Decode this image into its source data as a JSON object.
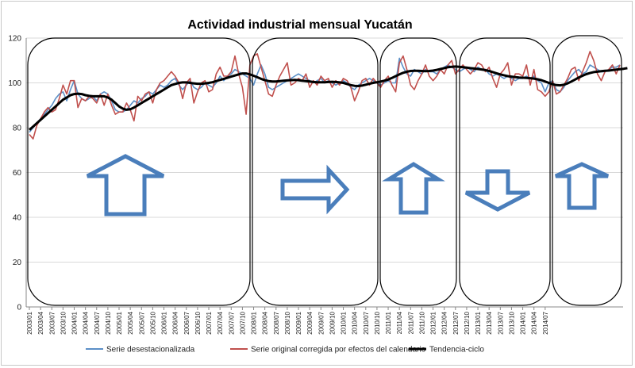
{
  "chart_data": {
    "type": "line",
    "title": "Actividad industrial mensual Yucatán",
    "ylim": [
      0,
      120
    ],
    "yticks": [
      "0",
      "20",
      "40",
      "60",
      "80",
      "100",
      "120"
    ],
    "grid": true,
    "legend_position": "bottom",
    "x_tick_labels": [
      "2003/01",
      "2003/04",
      "2003/07",
      "2003/10",
      "2004/01",
      "2004/04",
      "2004/07",
      "2004/10",
      "2005/01",
      "2005/04",
      "2005/07",
      "2005/10",
      "2006/01",
      "2006/04",
      "2006/07",
      "2006/10",
      "2007/01",
      "2007/04",
      "2007/07",
      "2007/10",
      "2008/01",
      "2008/04",
      "2008/07",
      "2008/10",
      "2009/01",
      "2009/04",
      "2009/07",
      "2009/10",
      "2010/01",
      "2010/04",
      "2010/07",
      "2010/10",
      "2011/01",
      "2011/04",
      "2011/07",
      "2011/10",
      "2012/01",
      "2012/04",
      "2012/07",
      "2012/10",
      "2013/01",
      "2013/04",
      "2013/07",
      "2013/10",
      "2014/01",
      "2014/04",
      "2014/07"
    ],
    "series": [
      {
        "name": "Serie desestacionalizada",
        "color": "#5b8fc7",
        "values": [
          78,
          80,
          82,
          84,
          86,
          88,
          90,
          93,
          95,
          96,
          92,
          97,
          101,
          95,
          93,
          92,
          93,
          94,
          92,
          95,
          96,
          95,
          92,
          88,
          87,
          87,
          88,
          90,
          92,
          91,
          93,
          94,
          96,
          95,
          97,
          99,
          98,
          99,
          101,
          102,
          99,
          97,
          99,
          101,
          98,
          97,
          98,
          100,
          99,
          98,
          100,
          103,
          101,
          103,
          104,
          106,
          105,
          104,
          103,
          102,
          99,
          104,
          108,
          104,
          98,
          97,
          98,
          99,
          100,
          101,
          102,
          103,
          104,
          103,
          102,
          101,
          100,
          101,
          102,
          100,
          101,
          100,
          99,
          100,
          101,
          100,
          98,
          97,
          99,
          100,
          101,
          102,
          101,
          100,
          99,
          100,
          101,
          100,
          100,
          111,
          107,
          104,
          103,
          106,
          105,
          104,
          106,
          105,
          105,
          104,
          106,
          107,
          108,
          107,
          106,
          105,
          106,
          107,
          106,
          105,
          107,
          106,
          106,
          104,
          103,
          104,
          103,
          102,
          103,
          102,
          101,
          102,
          102,
          103,
          102,
          103,
          101,
          100,
          96,
          100,
          101,
          97,
          96,
          98,
          101,
          103,
          105,
          106,
          104,
          105,
          108,
          107,
          106,
          105,
          105,
          106,
          107,
          107,
          108
        ]
      },
      {
        "name": "Serie original corregida por efectos del calendario",
        "color": "#c0504d",
        "values": [
          77,
          75,
          81,
          84,
          87,
          89,
          87,
          88,
          93,
          99,
          95,
          101,
          101,
          89,
          93,
          92,
          94,
          93,
          91,
          95,
          90,
          95,
          90,
          86,
          87,
          87,
          91,
          88,
          83,
          94,
          92,
          95,
          96,
          91,
          97,
          100,
          101,
          103,
          105,
          103,
          100,
          93,
          100,
          102,
          91,
          96,
          100,
          101,
          96,
          97,
          104,
          107,
          103,
          103,
          105,
          112,
          104,
          98,
          86,
          108,
          112,
          113,
          107,
          101,
          95,
          94,
          99,
          103,
          106,
          109,
          99,
          100,
          102,
          101,
          104,
          98,
          101,
          99,
          103,
          101,
          102,
          98,
          101,
          99,
          102,
          101,
          98,
          92,
          96,
          101,
          102,
          99,
          102,
          100,
          98,
          101,
          103,
          99,
          96,
          109,
          112,
          106,
          99,
          97,
          101,
          104,
          108,
          103,
          101,
          103,
          106,
          104,
          108,
          110,
          104,
          106,
          108,
          106,
          104,
          106,
          109,
          108,
          105,
          107,
          102,
          98,
          104,
          106,
          109,
          99,
          104,
          104,
          103,
          108,
          99,
          106,
          97,
          96,
          94,
          96,
          101,
          95,
          96,
          99,
          102,
          106,
          107,
          101,
          105,
          109,
          114,
          110,
          104,
          101,
          105,
          106,
          108,
          104,
          108
        ]
      },
      {
        "name": "Tendencia-ciclo",
        "color": "#000000",
        "values": [
          79,
          80.5,
          82,
          83.5,
          85,
          86.5,
          88,
          89.5,
          91,
          92.5,
          93.5,
          94.5,
          95,
          95.2,
          95,
          94.5,
          94.2,
          94,
          94,
          94,
          94,
          93.5,
          92.5,
          91,
          89.5,
          88.5,
          88,
          88.2,
          89,
          90,
          91,
          92,
          93,
          94,
          95,
          96,
          97,
          98,
          99,
          99.5,
          100,
          100.2,
          100.2,
          100,
          99.8,
          99.6,
          99.6,
          99.8,
          100,
          100.3,
          100.8,
          101.3,
          101.8,
          102.3,
          102.8,
          103.3,
          103.8,
          104.2,
          104.2,
          103.8,
          103.2,
          102.5,
          101.8,
          101.2,
          100.8,
          100.6,
          100.6,
          100.8,
          101,
          101.1,
          101.2,
          101.3,
          101.2,
          101,
          100.8,
          100.6,
          100.4,
          100.3,
          100.3,
          100.3,
          100.4,
          100.5,
          100.4,
          100.2,
          100,
          99.5,
          99,
          98.7,
          98.6,
          98.8,
          99.2,
          99.6,
          100,
          100.3,
          100.6,
          101,
          101.5,
          102.2,
          103,
          103.8,
          104.5,
          105,
          105.3,
          105.4,
          105.4,
          105.3,
          105.2,
          105.3,
          105.5,
          105.8,
          106.2,
          106.6,
          107,
          107.2,
          107.3,
          107.2,
          107,
          106.8,
          106.6,
          106.4,
          106.2,
          106,
          105.7,
          105.3,
          104.8,
          104.3,
          103.8,
          103.4,
          103,
          102.8,
          102.6,
          102.4,
          102.3,
          102.2,
          102.1,
          101.9,
          101.6,
          101.2,
          100.6,
          100,
          99.4,
          99,
          98.9,
          99.2,
          99.8,
          100.6,
          101.5,
          102.4,
          103.2,
          103.9,
          104.4,
          104.8,
          105,
          105.2,
          105.4,
          105.5,
          105.7,
          105.9,
          106.1,
          106.3,
          106.6
        ]
      }
    ]
  }
}
